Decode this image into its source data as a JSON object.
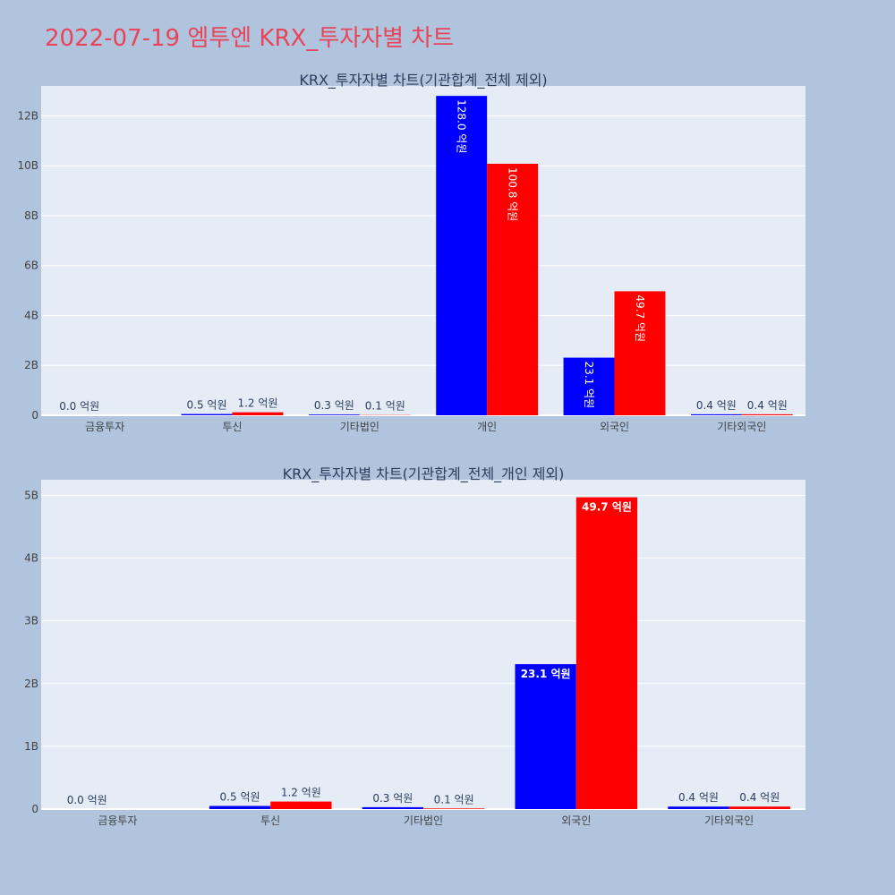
{
  "page": {
    "title": "2022-07-19 엠투엔 KRX_투자자별 차트"
  },
  "colors": {
    "buy": "#0000ff",
    "sell": "#ff0000",
    "background": "#b0c4de",
    "plot": "#e5ecf6",
    "title": "#e8445a"
  },
  "chart_data": [
    {
      "type": "bar",
      "title": "KRX_투자자별 차트(기관합계_전체 제외)",
      "categories": [
        "금융투자",
        "투신",
        "기타법인",
        "개인",
        "외국인",
        "기타외국인"
      ],
      "series": [
        {
          "color": "#0000ff",
          "values": [
            0.0,
            0.05,
            0.03,
            12.8,
            2.31,
            0.04
          ],
          "labels": [
            "0.0 억원",
            "0.5 억원",
            "0.3 억원",
            "128.0 억원",
            "23.1 억원",
            "0.4 억원"
          ]
        },
        {
          "color": "#ff0000",
          "values": [
            null,
            0.12,
            0.01,
            10.08,
            4.97,
            0.04
          ],
          "labels": [
            "",
            "1.2 억원",
            "0.1 억원",
            "100.8 억원",
            "49.7 억원",
            "0.4 억원"
          ]
        }
      ],
      "yticks": [
        0,
        2,
        4,
        6,
        8,
        10,
        12
      ],
      "ytick_labels": [
        "0",
        "2B",
        "4B",
        "6B",
        "8B",
        "10B",
        "12B"
      ],
      "ylim": [
        0,
        13.2
      ],
      "value_unit": "B",
      "grid": true,
      "inside_label_style": "rotated"
    },
    {
      "type": "bar",
      "title": "KRX_투자자별 차트(기관합계_전체_개인 제외)",
      "categories": [
        "금융투자",
        "투신",
        "기타법인",
        "외국인",
        "기타외국인"
      ],
      "series": [
        {
          "color": "#0000ff",
          "values": [
            0.0,
            0.05,
            0.03,
            2.31,
            0.04
          ],
          "labels": [
            "0.0 억원",
            "0.5 억원",
            "0.3 억원",
            "23.1 억원",
            "0.4 억원"
          ]
        },
        {
          "color": "#ff0000",
          "values": [
            null,
            0.12,
            0.01,
            4.97,
            0.04
          ],
          "labels": [
            "",
            "1.2 억원",
            "0.1 억원",
            "49.7 억원",
            "0.4 억원"
          ]
        }
      ],
      "yticks": [
        0,
        1,
        2,
        3,
        4,
        5
      ],
      "ytick_labels": [
        "0",
        "1B",
        "2B",
        "3B",
        "4B",
        "5B"
      ],
      "ylim": [
        0,
        5.25
      ],
      "value_unit": "B",
      "grid": true,
      "inside_label_style": "horizontal-bold"
    }
  ]
}
